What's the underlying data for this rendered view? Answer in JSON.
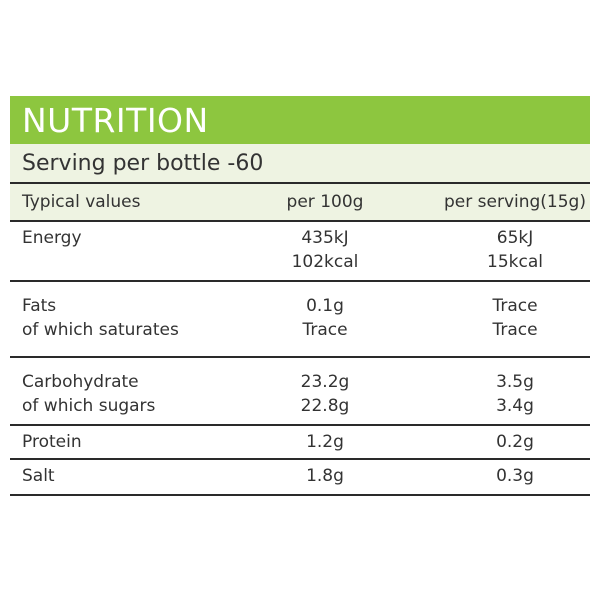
{
  "header": {
    "title": "NUTRITION",
    "serving": "Serving per bottle -60"
  },
  "colors": {
    "title_bg": "#8dc63f",
    "subheader_bg": "#eef3e2",
    "rule": "#2a2a2a"
  },
  "table": {
    "columns": [
      "Typical values",
      "per 100g",
      "per serving(15g)"
    ],
    "rows": [
      {
        "name": [
          "Energy"
        ],
        "per100": [
          "435kJ",
          "102kcal"
        ],
        "perServing": [
          "65kJ",
          "15kcal"
        ]
      },
      {
        "name": [
          "Fats",
          "of which saturates"
        ],
        "per100": [
          "0.1g",
          "Trace"
        ],
        "perServing": [
          "Trace",
          "Trace"
        ]
      },
      {
        "name": [
          "Carbohydrate",
          "of which sugars"
        ],
        "per100": [
          "23.2g",
          "22.8g"
        ],
        "perServing": [
          "3.5g",
          "3.4g"
        ]
      },
      {
        "name": [
          "Protein"
        ],
        "per100": [
          "1.2g"
        ],
        "perServing": [
          "0.2g"
        ]
      },
      {
        "name": [
          "Salt"
        ],
        "per100": [
          "1.8g"
        ],
        "perServing": [
          "0.3g"
        ]
      }
    ]
  }
}
